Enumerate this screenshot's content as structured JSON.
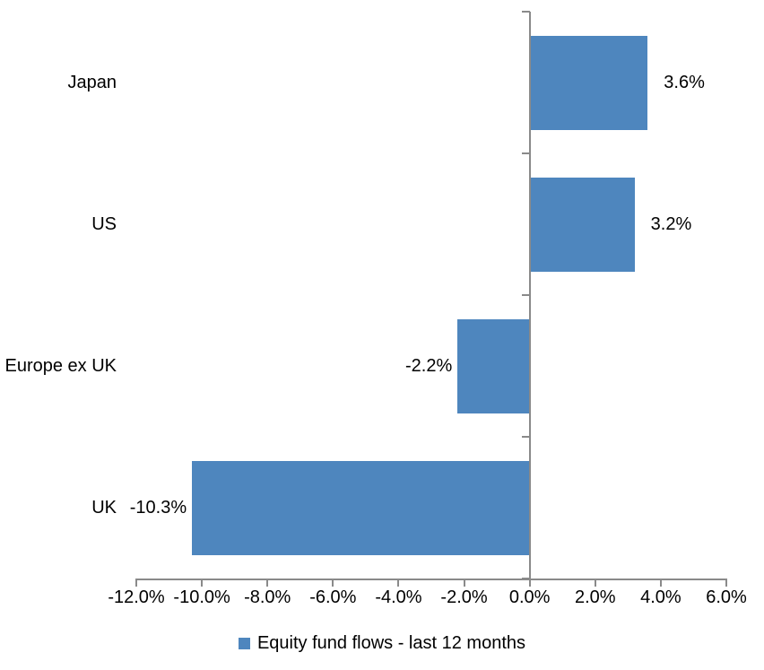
{
  "chart_data": {
    "type": "bar",
    "orientation": "horizontal",
    "title": "",
    "categories": [
      "Japan",
      "US",
      "Europe ex UK",
      "UK"
    ],
    "series": [
      {
        "name": "Equity fund flows - last 12 months",
        "values": [
          3.6,
          3.2,
          -2.2,
          -10.3
        ],
        "data_labels": [
          "3.6%",
          "3.2%",
          "-2.2%",
          "-10.3%"
        ]
      }
    ],
    "xlabel": "",
    "ylabel": "",
    "xlim": [
      -12,
      6
    ],
    "x_tick_values": [
      -12,
      -10,
      -8,
      -6,
      -4,
      -2,
      0,
      2,
      4,
      6
    ],
    "x_tick_labels": [
      "-12.0%",
      "-10.0%",
      "-8.0%",
      "-6.0%",
      "-4.0%",
      "-2.0%",
      "0.0%",
      "2.0%",
      "4.0%",
      "6.0%"
    ],
    "grid": "off",
    "legend_position": "bottom",
    "legend_label": "Equity fund flows - last 12 months",
    "colors": {
      "bar": "#4E86BE",
      "axis": "#8A8A8A",
      "text": "#000000",
      "background": "#FFFFFF"
    }
  }
}
